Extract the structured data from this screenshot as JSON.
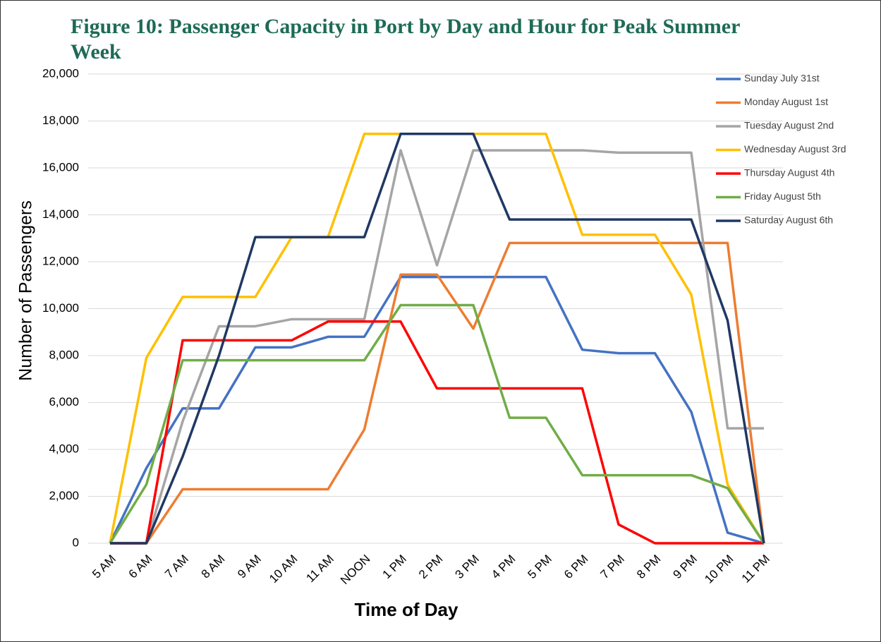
{
  "chart_data": {
    "type": "line",
    "title": "Figure 10: Passenger Capacity in Port by Day and Hour for Peak Summer Week",
    "x_label": "Time of Day",
    "y_label": "Number of Passengers",
    "categories": [
      "5 AM",
      "6 AM",
      "7 AM",
      "8 AM",
      "9 AM",
      "10 AM",
      "11 AM",
      "NOON",
      "1 PM",
      "2 PM",
      "3 PM",
      "4 PM",
      "5 PM",
      "6 PM",
      "7 PM",
      "8 PM",
      "9 PM",
      "10 PM",
      "11 PM"
    ],
    "ylim": [
      0,
      20000
    ],
    "yticks": [
      0,
      {
        "value": 2000,
        "label": "2,000"
      },
      {
        "value": 4000,
        "label": "4,000"
      },
      {
        "value": 6000,
        "label": "6,000"
      },
      {
        "value": 8000,
        "label": "8,000"
      },
      {
        "value": 10000,
        "label": "10,000"
      },
      {
        "value": 12000,
        "label": "12,000"
      },
      {
        "value": 14000,
        "label": "14,000"
      },
      {
        "value": 16000,
        "label": "16,000"
      },
      {
        "value": 18000,
        "label": "18,000"
      },
      {
        "value": 20000,
        "label": "20,000"
      }
    ],
    "grid": true,
    "legend": "right",
    "series": [
      {
        "name": "Sunday July 31st",
        "color": "#4472c4",
        "values": [
          0,
          3200,
          5750,
          5750,
          8350,
          8350,
          8800,
          8800,
          11350,
          11350,
          11350,
          11350,
          11350,
          8250,
          8100,
          8100,
          5600,
          450,
          0
        ]
      },
      {
        "name": "Monday August 1st",
        "color": "#ed7d31",
        "values": [
          0,
          0,
          2300,
          2300,
          2300,
          2300,
          2300,
          4850,
          11450,
          11450,
          9150,
          12800,
          12800,
          12800,
          12800,
          12800,
          12800,
          12800,
          0
        ]
      },
      {
        "name": "Tuesday August 2nd",
        "color": "#a5a5a5",
        "values": [
          0,
          0,
          5200,
          9250,
          9250,
          9550,
          9550,
          9550,
          16750,
          11850,
          16750,
          16750,
          16750,
          16750,
          16650,
          16650,
          16650,
          4900,
          4900
        ]
      },
      {
        "name": "Wednesday August 3rd",
        "color": "#ffc000",
        "values": [
          0,
          7900,
          10500,
          10500,
          10500,
          13050,
          13050,
          17450,
          17450,
          17450,
          17450,
          17450,
          17450,
          13150,
          13150,
          13150,
          10600,
          2500,
          0
        ]
      },
      {
        "name": "Thursday August 4th",
        "color": "#ff0000",
        "values": [
          0,
          0,
          8650,
          8650,
          8650,
          8650,
          9450,
          9450,
          9450,
          6600,
          6600,
          6600,
          6600,
          6600,
          800,
          0,
          0,
          0,
          0
        ]
      },
      {
        "name": "Friday August 5th",
        "color": "#70ad47",
        "values": [
          0,
          2500,
          7800,
          7800,
          7800,
          7800,
          7800,
          7800,
          10150,
          10150,
          10150,
          5350,
          5350,
          2900,
          2900,
          2900,
          2900,
          2350,
          0
        ]
      },
      {
        "name": "Saturday August 6th",
        "color": "#203864",
        "values": [
          0,
          0,
          3700,
          8000,
          13050,
          13050,
          13050,
          13050,
          17450,
          17450,
          17450,
          13800,
          13800,
          13800,
          13800,
          13800,
          13800,
          9500,
          0
        ]
      }
    ]
  }
}
